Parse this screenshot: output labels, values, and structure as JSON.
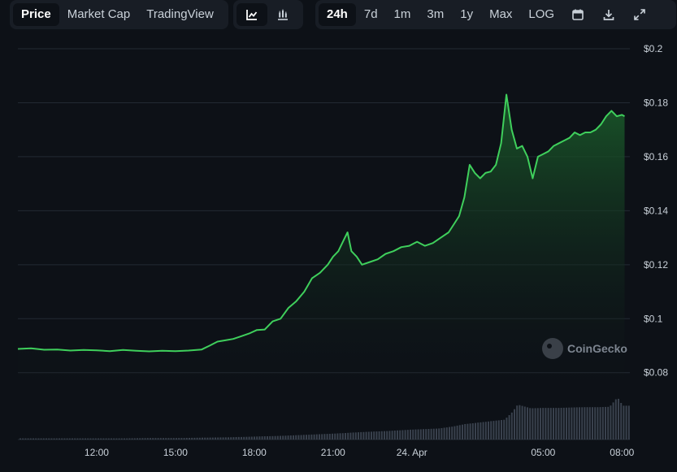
{
  "toolbar": {
    "view_tabs": [
      "Price",
      "Market Cap",
      "TradingView"
    ],
    "active_view": "Price",
    "chart_styles": [
      "line-chart-icon",
      "candlestick-chart-icon"
    ],
    "active_style": "line-chart-icon",
    "ranges": [
      "24h",
      "7d",
      "1m",
      "3m",
      "1y",
      "Max",
      "LOG"
    ],
    "active_range": "24h",
    "actions": [
      "calendar-icon",
      "download-icon",
      "fullscreen-icon"
    ]
  },
  "watermark": "CoinGecko",
  "colors": {
    "background": "#0d1117",
    "line": "#3fcf5c",
    "fill_top": "#1a5a2a",
    "grid": "#232a33",
    "volume": "#39414d"
  },
  "chart_data": {
    "type": "line",
    "y_axis_position": "right",
    "ylim": [
      0.073,
      0.2
    ],
    "y_ticks": [
      {
        "value": 0.2,
        "label": "$0.2"
      },
      {
        "value": 0.18,
        "label": "$0.18"
      },
      {
        "value": 0.16,
        "label": "$0.16"
      },
      {
        "value": 0.14,
        "label": "$0.14"
      },
      {
        "value": 0.12,
        "label": "$0.12"
      },
      {
        "value": 0.1,
        "label": "$0.1"
      },
      {
        "value": 0.08,
        "label": "$0.08"
      }
    ],
    "xlim": [
      9.0,
      32.3
    ],
    "x_ticks": [
      {
        "value": 12,
        "label": "12:00"
      },
      {
        "value": 15,
        "label": "15:00"
      },
      {
        "value": 18,
        "label": "18:00"
      },
      {
        "value": 21,
        "label": "21:00"
      },
      {
        "value": 24,
        "label": "24. Apr"
      },
      {
        "value": 29,
        "label": "05:00"
      },
      {
        "value": 32,
        "label": "08:00"
      }
    ],
    "grid": true,
    "price_series": {
      "x": [
        9.0,
        9.5,
        10.0,
        10.5,
        11.0,
        11.5,
        12.0,
        12.5,
        13.0,
        13.5,
        14.0,
        14.5,
        15.0,
        15.5,
        16.0,
        16.3,
        16.6,
        16.9,
        17.2,
        17.5,
        17.8,
        18.1,
        18.4,
        18.7,
        19.0,
        19.3,
        19.6,
        19.9,
        20.2,
        20.5,
        20.8,
        21.0,
        21.2,
        21.4,
        21.55,
        21.7,
        21.9,
        22.1,
        22.4,
        22.7,
        23.0,
        23.3,
        23.6,
        23.9,
        24.2,
        24.5,
        24.8,
        25.1,
        25.4,
        25.6,
        25.8,
        26.0,
        26.2,
        26.4,
        26.6,
        26.8,
        27.0,
        27.2,
        27.4,
        27.6,
        27.8,
        28.0,
        28.2,
        28.4,
        28.6,
        28.8,
        29.0,
        29.2,
        29.4,
        29.6,
        29.8,
        30.0,
        30.2,
        30.4,
        30.6,
        30.8,
        31.0,
        31.2,
        31.4,
        31.6,
        31.8,
        32.0,
        32.1
      ],
      "y": [
        0.0888,
        0.089,
        0.0885,
        0.0886,
        0.0882,
        0.0884,
        0.0883,
        0.088,
        0.0884,
        0.0881,
        0.0879,
        0.0881,
        0.088,
        0.0882,
        0.0886,
        0.09,
        0.0915,
        0.092,
        0.0925,
        0.0935,
        0.0945,
        0.0958,
        0.096,
        0.099,
        0.1,
        0.104,
        0.1065,
        0.11,
        0.115,
        0.117,
        0.12,
        0.123,
        0.125,
        0.129,
        0.132,
        0.125,
        0.123,
        0.12,
        0.121,
        0.122,
        0.124,
        0.125,
        0.1265,
        0.127,
        0.1285,
        0.127,
        0.128,
        0.13,
        0.132,
        0.135,
        0.138,
        0.145,
        0.157,
        0.154,
        0.152,
        0.154,
        0.1545,
        0.157,
        0.165,
        0.183,
        0.17,
        0.163,
        0.164,
        0.16,
        0.152,
        0.16,
        0.161,
        0.162,
        0.164,
        0.165,
        0.166,
        0.167,
        0.169,
        0.168,
        0.169,
        0.169,
        0.17,
        0.172,
        0.175,
        0.177,
        0.175,
        0.1755,
        0.175
      ]
    },
    "volume_series": {
      "x": [
        9.0,
        10.0,
        11.0,
        12.0,
        13.0,
        14.0,
        15.0,
        16.0,
        17.0,
        18.0,
        19.0,
        20.0,
        21.0,
        22.0,
        23.0,
        24.0,
        25.0,
        25.5,
        26.0,
        26.5,
        27.0,
        27.5,
        27.8,
        28.0,
        28.5,
        29.0,
        29.5,
        30.0,
        30.5,
        31.0,
        31.5,
        31.8,
        32.0,
        32.3
      ],
      "y": [
        0.3,
        0.3,
        0.3,
        0.3,
        0.3,
        0.4,
        0.4,
        0.5,
        0.6,
        0.8,
        1.0,
        1.3,
        1.6,
        2.0,
        2.3,
        2.7,
        3.0,
        3.5,
        4.2,
        4.6,
        5.0,
        5.4,
        7.5,
        9.5,
        8.5,
        8.6,
        8.6,
        8.7,
        8.8,
        8.8,
        8.9,
        11.5,
        9.2,
        9.2
      ]
    }
  }
}
